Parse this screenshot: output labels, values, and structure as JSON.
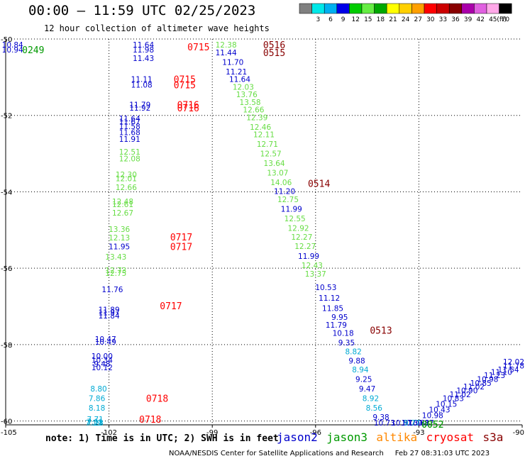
{
  "header": {
    "title": "00:00 – 11:59 UTC 02/25/2023",
    "subtitle": "12 hour collection of altimeter wave heights"
  },
  "color_scale": {
    "bins": [
      {
        "label": "",
        "color": "#808080"
      },
      {
        "label": "3",
        "color": "#00e8e8"
      },
      {
        "label": "6",
        "color": "#00b0f0"
      },
      {
        "label": "9",
        "color": "#0000e8"
      },
      {
        "label": "12",
        "color": "#00cc00"
      },
      {
        "label": "15",
        "color": "#66ee44"
      },
      {
        "label": "18",
        "color": "#00a800"
      },
      {
        "label": "21",
        "color": "#ffff00"
      },
      {
        "label": "24",
        "color": "#ffd000"
      },
      {
        "label": "27",
        "color": "#ffa000"
      },
      {
        "label": "30",
        "color": "#ff0000"
      },
      {
        "label": "33",
        "color": "#cc0000"
      },
      {
        "label": "36",
        "color": "#880000"
      },
      {
        "label": "39",
        "color": "#aa00aa"
      },
      {
        "label": "42",
        "color": "#e060e0"
      },
      {
        "label": "45",
        "color": "#ffa8e8"
      },
      {
        "label": "70",
        "color": "#000000"
      }
    ],
    "unit": "(ft)"
  },
  "satellites": [
    {
      "name": "jason2",
      "color": "#0000cc"
    },
    {
      "name": "jason3",
      "color": "#009900"
    },
    {
      "name": "altika",
      "color": "#ff8800"
    },
    {
      "name": "cryosat",
      "color": "#ff0000"
    },
    {
      "name": "s3a",
      "color": "#880000"
    }
  ],
  "footer": {
    "note": "note: 1) Time is in UTC; 2) SWH is in feet",
    "source": "NOAA/NESDIS Center for Satellite Applications and Research",
    "generated": "Feb 27 08:31:03 UTC 2023"
  },
  "chart_data": {
    "type": "scatter",
    "title": "",
    "xlabel": "",
    "ylabel": "",
    "xlim": [
      -105,
      -90
    ],
    "ylim": [
      -60.1,
      -50
    ],
    "x_ticks": [
      "-105",
      "-102",
      "-99",
      "-96",
      "-93",
      "-90"
    ],
    "y_ticks": [
      "-50",
      "-52",
      "-54",
      "-56",
      "-58",
      "-60"
    ],
    "grid": "dotted",
    "series": [
      {
        "name": "",
        "points": [
          {
            "x": -104.8,
            "y": -50.15,
            "label": "10.84",
            "color": "#0000cc"
          },
          {
            "x": -104.8,
            "y": -50.28,
            "label": "10.94",
            "color": "#0000cc"
          },
          {
            "x": -101.0,
            "y": -50.15,
            "label": "11.64",
            "color": "#0000cc"
          },
          {
            "x": -101.0,
            "y": -50.28,
            "label": "11.98",
            "color": "#0000cc"
          },
          {
            "x": -101.0,
            "y": -50.5,
            "label": "11.43",
            "color": "#0000cc"
          },
          {
            "x": -101.05,
            "y": -51.05,
            "label": "11.11",
            "color": "#0000cc"
          },
          {
            "x": -101.05,
            "y": -51.2,
            "label": "11.08",
            "color": "#0000cc"
          },
          {
            "x": -101.1,
            "y": -51.72,
            "label": "11.79",
            "color": "#0000cc"
          },
          {
            "x": -101.1,
            "y": -51.8,
            "label": "11.92",
            "color": "#0000cc"
          },
          {
            "x": -101.4,
            "y": -52.08,
            "label": "11.64",
            "color": "#0000cc"
          },
          {
            "x": -101.4,
            "y": -52.16,
            "label": "11.67",
            "color": "#0000cc"
          },
          {
            "x": -101.4,
            "y": -52.28,
            "label": "11.58",
            "color": "#0000cc"
          },
          {
            "x": -101.4,
            "y": -52.44,
            "label": "11.68",
            "color": "#0000cc"
          },
          {
            "x": -101.4,
            "y": -52.62,
            "label": "11.91",
            "color": "#0000cc"
          },
          {
            "x": -101.4,
            "y": -52.95,
            "label": "12.51",
            "color": "#66dd44"
          },
          {
            "x": -101.4,
            "y": -53.13,
            "label": "12.08",
            "color": "#66dd44"
          },
          {
            "x": -101.5,
            "y": -53.55,
            "label": "12.30",
            "color": "#66dd44"
          },
          {
            "x": -101.5,
            "y": -53.65,
            "label": "12.01",
            "color": "#66dd44"
          },
          {
            "x": -101.5,
            "y": -53.88,
            "label": "12.66",
            "color": "#66dd44"
          },
          {
            "x": -101.6,
            "y": -54.25,
            "label": "12.48",
            "color": "#66dd44"
          },
          {
            "x": -101.6,
            "y": -54.33,
            "label": "12.61",
            "color": "#66dd44"
          },
          {
            "x": -101.6,
            "y": -54.55,
            "label": "12.67",
            "color": "#66dd44"
          },
          {
            "x": -101.7,
            "y": -54.98,
            "label": "13.36",
            "color": "#66dd44"
          },
          {
            "x": -101.7,
            "y": -55.2,
            "label": "12.13",
            "color": "#66dd44"
          },
          {
            "x": -101.7,
            "y": -55.43,
            "label": "11.95",
            "color": "#0000cc"
          },
          {
            "x": -101.8,
            "y": -55.7,
            "label": "13.43",
            "color": "#66dd44"
          },
          {
            "x": -101.8,
            "y": -56.05,
            "label": "12.73",
            "color": "#66dd44"
          },
          {
            "x": -101.8,
            "y": -56.13,
            "label": "12.75",
            "color": "#66dd44"
          },
          {
            "x": -101.9,
            "y": -56.55,
            "label": "11.76",
            "color": "#0000cc"
          },
          {
            "x": -102.0,
            "y": -57.08,
            "label": "11.89",
            "color": "#0000cc"
          },
          {
            "x": -102.0,
            "y": -57.16,
            "label": "11.97",
            "color": "#0000cc"
          },
          {
            "x": -102.0,
            "y": -57.24,
            "label": "11.84",
            "color": "#0000cc"
          },
          {
            "x": -102.1,
            "y": -57.85,
            "label": "10.47",
            "color": "#0000cc"
          },
          {
            "x": -102.1,
            "y": -57.93,
            "label": "10.49",
            "color": "#0000cc"
          },
          {
            "x": -102.2,
            "y": -58.3,
            "label": "10.00",
            "color": "#0000cc"
          },
          {
            "x": -102.2,
            "y": -58.4,
            "label": "10.34",
            "color": "#0000cc"
          },
          {
            "x": -102.2,
            "y": -58.5,
            "label": "9.48",
            "color": "#0000cc"
          },
          {
            "x": -102.2,
            "y": -58.6,
            "label": "10.12",
            "color": "#0000cc"
          },
          {
            "x": -102.3,
            "y": -59.15,
            "label": "8.80",
            "color": "#00aad4"
          },
          {
            "x": -102.35,
            "y": -59.4,
            "label": "7.86",
            "color": "#00aad4"
          },
          {
            "x": -102.35,
            "y": -59.65,
            "label": "8.18",
            "color": "#00aad4"
          },
          {
            "x": -102.4,
            "y": -59.95,
            "label": "7.71",
            "color": "#00aad4"
          },
          {
            "x": -102.4,
            "y": -60.02,
            "label": "7.11",
            "color": "#00aad4"
          },
          {
            "x": -102.4,
            "y": -60.2,
            "label": "7.28",
            "color": "#00aad4"
          },
          {
            "x": -102.45,
            "y": -60.45,
            "label": "7.19",
            "color": "#00aad4"
          },
          {
            "x": -98.6,
            "y": -50.15,
            "label": "12.38",
            "color": "#66dd44"
          },
          {
            "x": -98.6,
            "y": -50.35,
            "label": "11.44",
            "color": "#0000cc"
          },
          {
            "x": -98.4,
            "y": -50.6,
            "label": "11.70",
            "color": "#0000cc"
          },
          {
            "x": -98.3,
            "y": -50.85,
            "label": "11.21",
            "color": "#0000cc"
          },
          {
            "x": -98.2,
            "y": -51.05,
            "label": "11.64",
            "color": "#0000cc"
          },
          {
            "x": -98.1,
            "y": -51.25,
            "label": "12.03",
            "color": "#66dd44"
          },
          {
            "x": -98.0,
            "y": -51.45,
            "label": "13.76",
            "color": "#66dd44"
          },
          {
            "x": -97.9,
            "y": -51.65,
            "label": "13.58",
            "color": "#66dd44"
          },
          {
            "x": -97.8,
            "y": -51.85,
            "label": "12.66",
            "color": "#66dd44"
          },
          {
            "x": -97.7,
            "y": -52.05,
            "label": "12.39",
            "color": "#66dd44"
          },
          {
            "x": -97.6,
            "y": -52.3,
            "label": "12.46",
            "color": "#66dd44"
          },
          {
            "x": -97.5,
            "y": -52.5,
            "label": "12.11",
            "color": "#66dd44"
          },
          {
            "x": -97.4,
            "y": -52.75,
            "label": "12.71",
            "color": "#66dd44"
          },
          {
            "x": -97.3,
            "y": -53.0,
            "label": "12.57",
            "color": "#66dd44"
          },
          {
            "x": -97.2,
            "y": -53.25,
            "label": "13.64",
            "color": "#66dd44"
          },
          {
            "x": -97.1,
            "y": -53.5,
            "label": "13.07",
            "color": "#66dd44"
          },
          {
            "x": -97.0,
            "y": -53.75,
            "label": "14.06",
            "color": "#66dd44"
          },
          {
            "x": -96.9,
            "y": -53.98,
            "label": "11.20",
            "color": "#0000cc"
          },
          {
            "x": -96.8,
            "y": -54.2,
            "label": "12.75",
            "color": "#66dd44"
          },
          {
            "x": -96.7,
            "y": -54.45,
            "label": "11.99",
            "color": "#0000cc"
          },
          {
            "x": -96.6,
            "y": -54.7,
            "label": "12.55",
            "color": "#66dd44"
          },
          {
            "x": -96.5,
            "y": -54.95,
            "label": "12.92",
            "color": "#66dd44"
          },
          {
            "x": -96.4,
            "y": -55.18,
            "label": "12.27",
            "color": "#66dd44"
          },
          {
            "x": -96.3,
            "y": -55.42,
            "label": "12.27",
            "color": "#66dd44"
          },
          {
            "x": -96.2,
            "y": -55.68,
            "label": "11.99",
            "color": "#0000cc"
          },
          {
            "x": -96.1,
            "y": -55.92,
            "label": "12.43",
            "color": "#66dd44"
          },
          {
            "x": -96.0,
            "y": -56.15,
            "label": "13.37",
            "color": "#66dd44"
          },
          {
            "x": -95.7,
            "y": -56.5,
            "label": "10.53",
            "color": "#0000cc"
          },
          {
            "x": -95.6,
            "y": -56.78,
            "label": "11.12",
            "color": "#0000cc"
          },
          {
            "x": -95.5,
            "y": -57.05,
            "label": "11.85",
            "color": "#0000cc"
          },
          {
            "x": -95.3,
            "y": -57.28,
            "label": "9.95",
            "color": "#0000cc"
          },
          {
            "x": -95.4,
            "y": -57.48,
            "label": "11.79",
            "color": "#0000cc"
          },
          {
            "x": -95.2,
            "y": -57.7,
            "label": "10.18",
            "color": "#0000cc"
          },
          {
            "x": -95.1,
            "y": -57.95,
            "label": "9.35",
            "color": "#0000cc"
          },
          {
            "x": -94.9,
            "y": -58.18,
            "label": "8.82",
            "color": "#00aad4"
          },
          {
            "x": -94.8,
            "y": -58.42,
            "label": "9.88",
            "color": "#0000cc"
          },
          {
            "x": -94.7,
            "y": -58.65,
            "label": "8.94",
            "color": "#00aad4"
          },
          {
            "x": -94.6,
            "y": -58.9,
            "label": "9.25",
            "color": "#0000cc"
          },
          {
            "x": -94.5,
            "y": -59.15,
            "label": "9.47",
            "color": "#0000cc"
          },
          {
            "x": -94.4,
            "y": -59.4,
            "label": "8.92",
            "color": "#00aad4"
          },
          {
            "x": -94.3,
            "y": -59.65,
            "label": "8.56",
            "color": "#00aad4"
          },
          {
            "x": -94.1,
            "y": -59.9,
            "label": "9.38",
            "color": "#0000cc"
          },
          {
            "x": -94.0,
            "y": -60.2,
            "label": "10.73",
            "color": "#0000cc"
          },
          {
            "x": -93.5,
            "y": -60.5,
            "label": "10.67",
            "color": "#0000cc"
          },
          {
            "x": -93.2,
            "y": -60.35,
            "label": "10.50",
            "color": "#0000cc"
          },
          {
            "x": -93.0,
            "y": -60.2,
            "label": "10.61",
            "color": "#0000cc"
          },
          {
            "x": -92.8,
            "y": -60.05,
            "label": "9.87",
            "color": "#0000cc"
          },
          {
            "x": -92.6,
            "y": -59.85,
            "label": "10.98",
            "color": "#0000cc"
          },
          {
            "x": -92.4,
            "y": -59.7,
            "label": "10.43",
            "color": "#0000cc"
          },
          {
            "x": -92.2,
            "y": -59.55,
            "label": "10.15",
            "color": "#0000cc"
          },
          {
            "x": -92.0,
            "y": -59.4,
            "label": "10.83",
            "color": "#0000cc"
          },
          {
            "x": -91.8,
            "y": -59.3,
            "label": "11.02",
            "color": "#0000cc"
          },
          {
            "x": -91.6,
            "y": -59.2,
            "label": "10.90",
            "color": "#0000cc"
          },
          {
            "x": -91.4,
            "y": -59.1,
            "label": "11.02",
            "color": "#0000cc"
          },
          {
            "x": -91.2,
            "y": -59.0,
            "label": "10.85",
            "color": "#0000cc"
          },
          {
            "x": -91.0,
            "y": -58.9,
            "label": "10.98",
            "color": "#0000cc"
          },
          {
            "x": -90.8,
            "y": -58.8,
            "label": "11.23",
            "color": "#0000cc"
          },
          {
            "x": -90.6,
            "y": -58.72,
            "label": "11.10",
            "color": "#0000cc"
          },
          {
            "x": -90.4,
            "y": -58.65,
            "label": "11.54",
            "color": "#0000cc"
          },
          {
            "x": -90.2,
            "y": -58.55,
            "label": "11.78",
            "color": "#0000cc"
          },
          {
            "x": -90.05,
            "y": -58.45,
            "label": "12.02",
            "color": "#0000cc"
          },
          {
            "x": -93.2,
            "y": -60.4,
            "label": "9.77",
            "color": "#00aad4"
          }
        ]
      }
    ],
    "annotations": [
      {
        "x": -104.2,
        "y": -50.28,
        "text": "0249",
        "color": "#009900"
      },
      {
        "x": -99.4,
        "y": -50.2,
        "text": "0715",
        "color": "#ff0000"
      },
      {
        "x": -99.8,
        "y": -51.05,
        "text": "0715",
        "color": "#ff0000"
      },
      {
        "x": -99.8,
        "y": -51.2,
        "text": "0715",
        "color": "#ff0000"
      },
      {
        "x": -99.7,
        "y": -51.72,
        "text": "0716",
        "color": "#ff0000"
      },
      {
        "x": -99.7,
        "y": -51.8,
        "text": "0716",
        "color": "#ff0000"
      },
      {
        "x": -99.9,
        "y": -55.18,
        "text": "0717",
        "color": "#ff0000"
      },
      {
        "x": -99.9,
        "y": -55.43,
        "text": "0717",
        "color": "#ff0000"
      },
      {
        "x": -100.2,
        "y": -56.98,
        "text": "0717",
        "color": "#ff0000"
      },
      {
        "x": -100.6,
        "y": -59.4,
        "text": "0718",
        "color": "#ff0000"
      },
      {
        "x": -100.8,
        "y": -59.95,
        "text": "0718",
        "color": "#ff0000"
      },
      {
        "x": -97.2,
        "y": -50.15,
        "text": "0516",
        "color": "#880000"
      },
      {
        "x": -97.2,
        "y": -50.35,
        "text": "0515",
        "color": "#880000"
      },
      {
        "x": -95.9,
        "y": -53.78,
        "text": "0514",
        "color": "#880000"
      },
      {
        "x": -94.1,
        "y": -57.62,
        "text": "0513",
        "color": "#880000"
      },
      {
        "x": -92.6,
        "y": -60.35,
        "text": "0052",
        "color": "#009900"
      },
      {
        "x": -92.6,
        "y": -60.5,
        "text": "0052",
        "color": "#009900"
      }
    ]
  }
}
